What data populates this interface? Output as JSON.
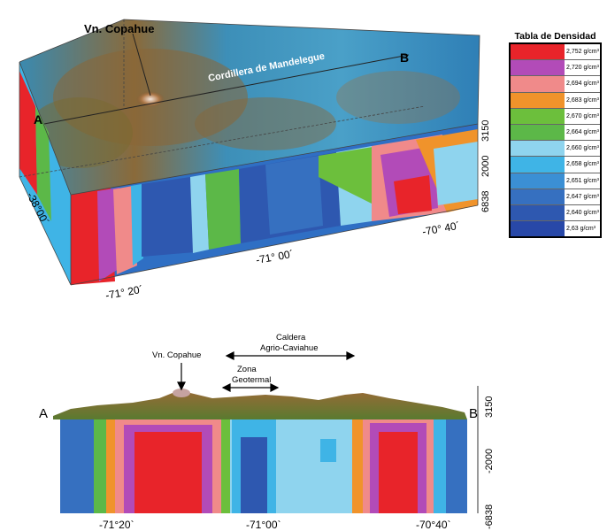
{
  "top_view": {
    "volcano_label": "Vn. Copahue",
    "range_label": "Cordillera de Mandelegue",
    "point_a": "A",
    "point_b": "B",
    "depth_ticks": [
      "3150",
      "2000",
      "6838"
    ],
    "lat_tick": "-38°00´",
    "lon_ticks": [
      "-71° 20´",
      "-71° 00´",
      "-70° 40´"
    ]
  },
  "section_view": {
    "volcano_label": "Vn. Copahue",
    "caldera_label_line1": "Caldera",
    "caldera_label_line2": "Agrio-Caviahue",
    "zone_label_line1": "Zona",
    "zone_label_line2": "Geotermal",
    "point_a": "A",
    "point_b": "B",
    "depth_ticks": [
      "3150",
      "-2000",
      "-6838"
    ],
    "lon_ticks": [
      "-71°20`",
      "-71°00`",
      "-70°40`"
    ]
  },
  "legend": {
    "title": "Tabla de Densidad",
    "entries": [
      {
        "value": "2,752 g/cm³",
        "color": "#e8242a"
      },
      {
        "value": "2,720 g/cm³",
        "color": "#b24bb8"
      },
      {
        "value": "2,694 g/cm³",
        "color": "#f08a8a"
      },
      {
        "value": "2,683 g/cm³",
        "color": "#f0932b"
      },
      {
        "value": "2,670 g/cm³",
        "color": "#6cbf3c"
      },
      {
        "value": "2,664 g/cm³",
        "color": "#5cb848"
      },
      {
        "value": "2,660 g/cm³",
        "color": "#8fd4ee"
      },
      {
        "value": "2,658 g/cm³",
        "color": "#3fb4e6"
      },
      {
        "value": "2,651 g/cm³",
        "color": "#3b8fd4"
      },
      {
        "value": "2,647 g/cm³",
        "color": "#3670c0"
      },
      {
        "value": "2,640 g/cm³",
        "color": "#2e58b0"
      },
      {
        "value": "2,63 g/cm³",
        "color": "#2848a8"
      }
    ]
  }
}
